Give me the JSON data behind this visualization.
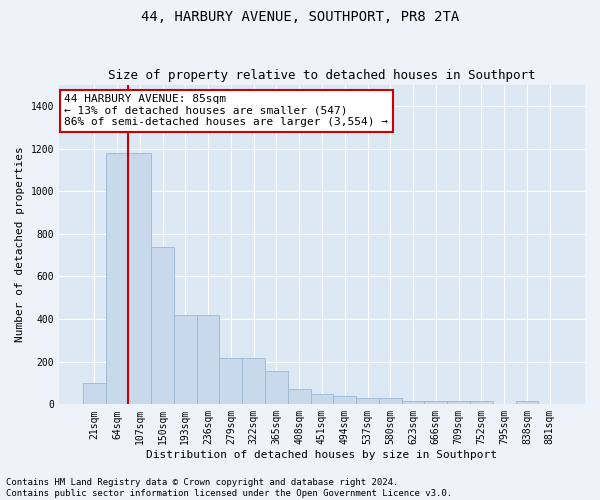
{
  "title": "44, HARBURY AVENUE, SOUTHPORT, PR8 2TA",
  "subtitle": "Size of property relative to detached houses in Southport",
  "xlabel": "Distribution of detached houses by size in Southport",
  "ylabel": "Number of detached properties",
  "bar_labels": [
    "21sqm",
    "64sqm",
    "107sqm",
    "150sqm",
    "193sqm",
    "236sqm",
    "279sqm",
    "322sqm",
    "365sqm",
    "408sqm",
    "451sqm",
    "494sqm",
    "537sqm",
    "580sqm",
    "623sqm",
    "666sqm",
    "709sqm",
    "752sqm",
    "795sqm",
    "838sqm",
    "881sqm"
  ],
  "bar_values": [
    100,
    1180,
    1180,
    740,
    420,
    420,
    215,
    215,
    155,
    70,
    50,
    40,
    30,
    30,
    15,
    15,
    15,
    15,
    0,
    15,
    0
  ],
  "bar_color": "#c8d9ec",
  "bar_edge_color": "#9ab8d4",
  "ylim": [
    0,
    1500
  ],
  "yticks": [
    0,
    200,
    400,
    600,
    800,
    1000,
    1200,
    1400
  ],
  "annotation_line1": "44 HARBURY AVENUE: 85sqm",
  "annotation_line2": "← 13% of detached houses are smaller (547)",
  "annotation_line3": "86% of semi-detached houses are larger (3,554) →",
  "annotation_box_color": "#ffffff",
  "annotation_box_edge_color": "#cc0000",
  "vline_color": "#cc0000",
  "vline_x_index": 1.5,
  "footer_line1": "Contains HM Land Registry data © Crown copyright and database right 2024.",
  "footer_line2": "Contains public sector information licensed under the Open Government Licence v3.0.",
  "fig_bg_color": "#eef3fa",
  "plot_bg_color": "#dde8f5",
  "grid_color": "#ffffff",
  "title_fontsize": 10,
  "subtitle_fontsize": 9,
  "axis_label_fontsize": 8,
  "tick_fontsize": 7,
  "annotation_fontsize": 8,
  "footer_fontsize": 6.5
}
